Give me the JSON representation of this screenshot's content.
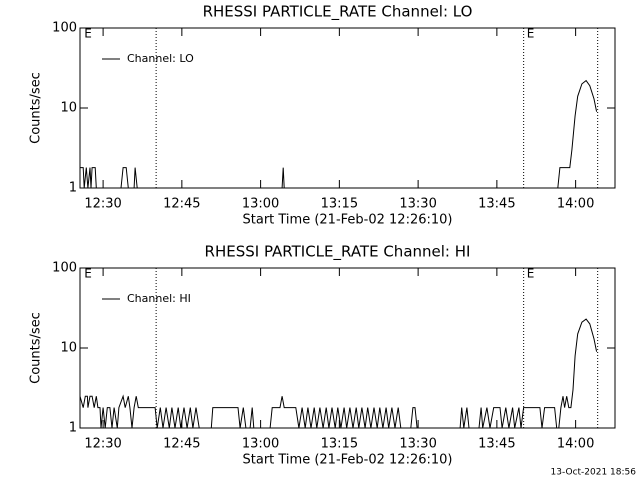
{
  "chart_data": [
    {
      "type": "line",
      "title": "RHESSI PARTICLE_RATE Channel: LO",
      "xlabel": "Start Time (21-Feb-02 12:26:10)",
      "ylabel": "Counts/sec",
      "xlim": [
        745.6,
        847.5
      ],
      "xticks": [
        {
          "value": 750,
          "label": "12:30"
        },
        {
          "value": 765,
          "label": "12:45"
        },
        {
          "value": 780,
          "label": "13:00"
        },
        {
          "value": 795,
          "label": "13:15"
        },
        {
          "value": 810,
          "label": "13:30"
        },
        {
          "value": 825,
          "label": "13:45"
        },
        {
          "value": 840,
          "label": "14:00"
        }
      ],
      "ylim": [
        1,
        100
      ],
      "yticks": [
        1,
        10,
        100
      ],
      "log_y": true,
      "legend": "upper left",
      "vlines": [
        760.1,
        830.1,
        844.2
      ],
      "annotations": [
        {
          "text": "E",
          "x": 746.4
        },
        {
          "text": "E",
          "x": 830.7
        }
      ],
      "series": [
        {
          "name": "Channel: LO",
          "color": "#000000",
          "x": [
            745.6,
            746.2,
            746.4,
            746.8,
            747.1,
            747.5,
            747.7,
            747.9,
            748.5,
            748.7,
            753.4,
            753.8,
            754.4,
            754.8,
            755.9,
            756.1,
            756.5,
            784.1,
            784.3,
            784.5,
            836.6,
            837.0,
            838.9,
            839.3,
            839.9,
            840.4,
            841.2,
            842.0,
            842.7,
            843.5,
            844.0
          ],
          "values": [
            1.8,
            1.8,
            1,
            1.8,
            1,
            1.8,
            1,
            1.8,
            1.8,
            1,
            1,
            1.8,
            1.8,
            1,
            1,
            1.8,
            1,
            1,
            1.8,
            1,
            1,
            1.8,
            1.8,
            3,
            8,
            14,
            20,
            22,
            19,
            13,
            9
          ]
        }
      ]
    },
    {
      "type": "line",
      "title": "RHESSI PARTICLE_RATE Channel: HI",
      "xlabel": "Start Time (21-Feb-02 12:26:10)",
      "ylabel": "Counts/sec",
      "xlim": [
        745.6,
        847.5
      ],
      "xticks": [
        {
          "value": 750,
          "label": "12:30"
        },
        {
          "value": 765,
          "label": "12:45"
        },
        {
          "value": 780,
          "label": "13:00"
        },
        {
          "value": 795,
          "label": "13:15"
        },
        {
          "value": 810,
          "label": "13:30"
        },
        {
          "value": 825,
          "label": "13:45"
        },
        {
          "value": 840,
          "label": "14:00"
        }
      ],
      "ylim": [
        1,
        100
      ],
      "yticks": [
        1,
        10,
        100
      ],
      "log_y": true,
      "legend": "upper left",
      "vlines": [
        760.1,
        830.1,
        844.2
      ],
      "annotations": [
        {
          "text": "E",
          "x": 746.4
        },
        {
          "text": "E",
          "x": 830.7
        }
      ],
      "series": [
        {
          "name": "Channel: HI",
          "color": "#000000",
          "x": [
            745.6,
            746.2,
            746.6,
            747.0,
            747.1,
            747.5,
            747.9,
            748.3,
            748.7,
            749.0,
            749.4,
            749.6,
            750.0,
            750.4,
            750.8,
            751.3,
            751.7,
            752.1,
            752.7,
            753.0,
            753.8,
            754.2,
            754.8,
            755.1,
            755.5,
            755.9,
            756.3,
            756.7,
            759.9,
            760.3,
            760.9,
            761.4,
            762.0,
            762.6,
            763.1,
            763.7,
            764.3,
            764.8,
            765.4,
            766.0,
            766.6,
            767.1,
            767.7,
            768.3,
            770.6,
            770.9,
            775.7,
            776.1,
            776.7,
            777.2,
            778.0,
            778.4,
            778.7,
            781.8,
            782.2,
            783.7,
            784.1,
            784.5,
            786.7,
            787.3,
            787.9,
            788.5,
            789.0,
            789.6,
            790.2,
            790.7,
            791.3,
            791.9,
            792.5,
            793.0,
            793.6,
            794.2,
            794.7,
            795.3,
            795.9,
            796.4,
            797.0,
            797.6,
            798.2,
            798.7,
            799.3,
            799.9,
            800.4,
            801.0,
            801.6,
            802.2,
            802.7,
            803.3,
            803.9,
            804.4,
            805.0,
            805.6,
            806.2,
            806.7,
            808.6,
            809.0,
            809.4,
            809.8,
            818.0,
            818.3,
            818.7,
            819.3,
            819.7,
            821.6,
            822.0,
            822.3,
            823.1,
            823.7,
            824.4,
            825.6,
            826.0,
            826.7,
            827.3,
            828.0,
            828.4,
            829.2,
            829.6,
            830.1,
            833.2,
            833.6,
            834.1,
            836.0,
            836.4,
            836.8,
            837.2,
            837.6,
            837.9,
            838.3,
            838.7,
            839.1,
            839.5,
            839.9,
            840.4,
            841.2,
            842.0,
            842.7,
            843.5,
            844.0
          ],
          "values": [
            2.5,
            1.8,
            2.5,
            2.5,
            1.8,
            2.5,
            2.5,
            1.8,
            2.5,
            1.8,
            1.8,
            1,
            1.8,
            1,
            1.8,
            1.8,
            1,
            1.8,
            1,
            1.8,
            2.5,
            1.8,
            2.5,
            1.8,
            1,
            1.8,
            2.5,
            1.8,
            1.8,
            1,
            1.8,
            1,
            1.8,
            1,
            1.8,
            1,
            1.8,
            1,
            1.8,
            1,
            1.8,
            1,
            1.8,
            1,
            1,
            1.8,
            1.8,
            1,
            1.8,
            1,
            1,
            1.8,
            1,
            1,
            1.8,
            1.8,
            2.5,
            1.8,
            1.8,
            1,
            1.8,
            1,
            1.8,
            1,
            1.8,
            1,
            1.8,
            1,
            1.8,
            1,
            1.8,
            1,
            1.8,
            1,
            1.8,
            1,
            1.8,
            1,
            1.8,
            1,
            1.8,
            1,
            1.8,
            1,
            1.8,
            1,
            1.8,
            1,
            1.8,
            1,
            1.8,
            1,
            1.8,
            1,
            1,
            1.8,
            1.8,
            1,
            1,
            1.8,
            1,
            1.8,
            1,
            1,
            1.8,
            1,
            1.8,
            1,
            1.8,
            1.8,
            1,
            1.8,
            1,
            1.8,
            1,
            1.8,
            1,
            1.8,
            1.8,
            1,
            1.8,
            1.8,
            1,
            1,
            1.8,
            2.5,
            1.8,
            2.5,
            1.8,
            1.8,
            3,
            8,
            15,
            21,
            23,
            20,
            13,
            9
          ]
        }
      ]
    }
  ],
  "footer": "13-Oct-2021 18:56"
}
